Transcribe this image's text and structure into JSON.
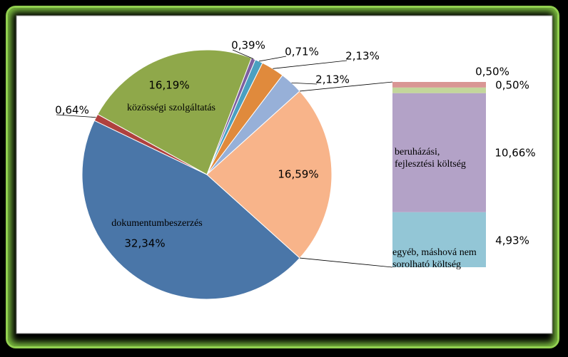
{
  "chart_data": {
    "type": "pie-of-bar",
    "pie": {
      "categories": [
        "dokumentumbeszerzés",
        null,
        "közösségi szolgáltatás",
        null,
        null,
        null,
        null,
        null
      ],
      "values": [
        32.34,
        0.64,
        16.19,
        0.39,
        0.71,
        2.13,
        2.13,
        16.59
      ],
      "value_labels": [
        "32,34%",
        "0,64%",
        "16,19%",
        "0,39%",
        "0,71%",
        "2,13%",
        "2,13%",
        "16,59%"
      ],
      "colors": [
        "#4a76a8",
        "#b0413e",
        "#8fa84a",
        "#7d5fa0",
        "#4aa0c0",
        "#e08a3c",
        "#97b0d8",
        "#f8b48a"
      ]
    },
    "bar": {
      "categories": [
        "egyéb, máshová nem sorolható költség",
        "beruházási, fejlesztési költség",
        null,
        null
      ],
      "values": [
        4.93,
        10.66,
        0.5,
        0.5
      ],
      "value_labels": [
        "4,93%",
        "10,66%",
        "0,50%",
        "0,50%"
      ],
      "colors": [
        "#93c6d6",
        "#b3a2c7",
        "#c3d69b",
        "#d99694"
      ]
    }
  }
}
